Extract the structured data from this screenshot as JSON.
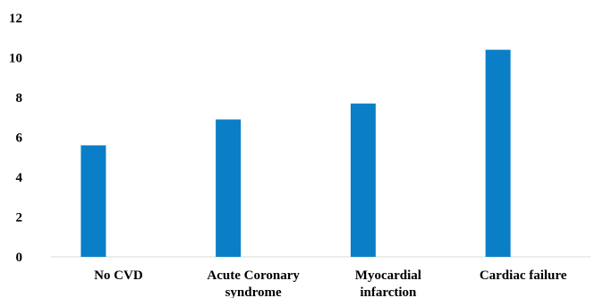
{
  "chart_data": {
    "type": "bar",
    "categories": [
      [
        "No CVD"
      ],
      [
        "Acute Coronary",
        "syndrome"
      ],
      [
        "Myocardial",
        "infarction"
      ],
      [
        "Cardiac failure"
      ]
    ],
    "values": [
      5.6,
      6.9,
      7.7,
      10.4
    ],
    "ylim": [
      0,
      12
    ],
    "yticks": [
      0,
      2,
      4,
      6,
      8,
      10,
      12
    ],
    "grid": false,
    "colors": {
      "bar": "#0a7fc8",
      "axis": "#d9d9d9"
    }
  }
}
